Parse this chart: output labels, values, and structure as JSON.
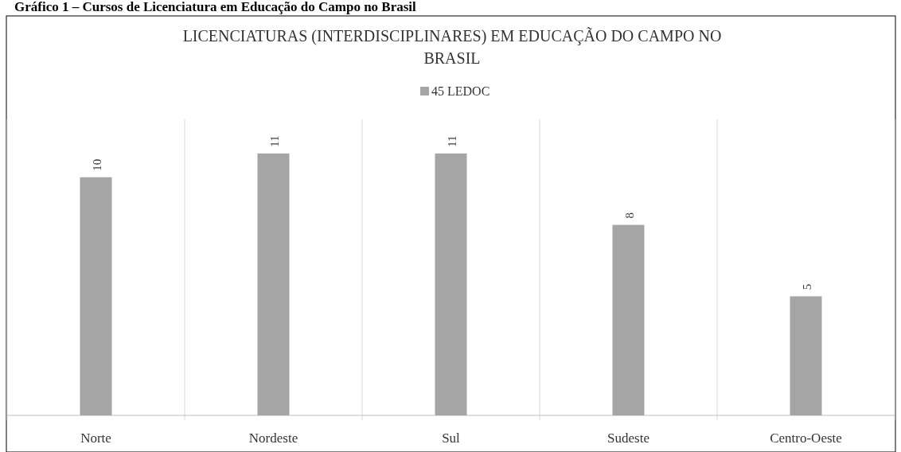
{
  "chart_data": {
    "type": "bar",
    "title": "LICENCIATURAS (INTERDISCIPLINARES) EM EDUCAÇÃO DO CAMPO NO BRASIL",
    "annotations": [
      "Gráfico 1 – Cursos de Licenciatura em Educação do Campo no Brasil"
    ],
    "categories": [
      "Norte",
      "Nordeste",
      "Sul",
      "Sudeste",
      "Centro-Oeste"
    ],
    "series": [
      {
        "name": "45 LEDOC",
        "color": "#a5a5a5",
        "values": [
          10,
          11,
          11,
          8,
          5
        ]
      }
    ],
    "data_labels": true,
    "legend": "top",
    "grid": "x"
  }
}
